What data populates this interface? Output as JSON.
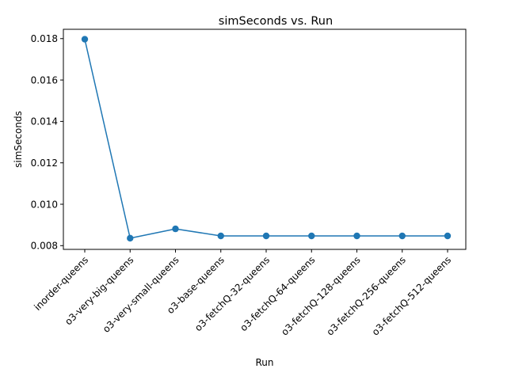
{
  "chart_data": {
    "type": "line",
    "title": "simSeconds vs. Run",
    "xlabel": "Run",
    "ylabel": "simSeconds",
    "categories": [
      "inorder-queens",
      "o3-very-big-queens",
      "o3-very-small-queens",
      "o3-base-queens",
      "o3-fetchQ-32-queens",
      "o3-fetchQ-64-queens",
      "o3-fetchQ-128-queens",
      "o3-fetchQ-256-queens",
      "o3-fetchQ-512-queens"
    ],
    "series": [
      {
        "values": [
          0.01797,
          0.00836,
          0.00881,
          0.00847,
          0.00847,
          0.00847,
          0.00847,
          0.00847,
          0.00847
        ],
        "color": "#1f77b4",
        "marker": "circle"
      }
    ],
    "ylim": [
      0.00782,
      0.01845
    ],
    "yticks": [
      "0.008",
      "0.010",
      "0.012",
      "0.014",
      "0.016",
      "0.018"
    ],
    "ytick_values": [
      0.008,
      0.01,
      0.012,
      0.014,
      0.016,
      0.018
    ],
    "grid": false,
    "legend": "none"
  }
}
